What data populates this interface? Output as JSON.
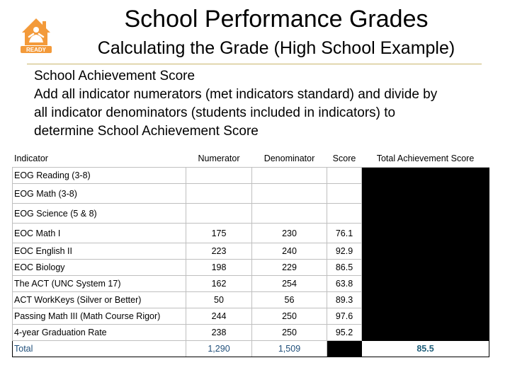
{
  "header": {
    "title": "School Performance Grades",
    "subtitle": "Calculating the Grade (High School Example)",
    "logo_text": "READY",
    "logo_color": "#f39a3a"
  },
  "description": {
    "heading": "School Achievement Score",
    "lines": [
      "Add all indicator numerators (met indicators standard) and divide by",
      "all indicator denominators (students included in indicators) to",
      "determine School Achievement Score"
    ]
  },
  "table": {
    "headers": {
      "indicator": "Indicator",
      "numerator": "Numerator",
      "denominator": "Denominator",
      "score": "Score",
      "total": "Total Achievement Score"
    },
    "rows": [
      {
        "indicator": "EOG Reading (3-8)",
        "numerator": "",
        "denominator": "",
        "score": ""
      },
      {
        "indicator": "EOG Math (3-8)",
        "numerator": "",
        "denominator": "",
        "score": ""
      },
      {
        "indicator": "EOG Science (5 & 8)",
        "numerator": "",
        "denominator": "",
        "score": ""
      },
      {
        "indicator": "EOC Math I",
        "numerator": "175",
        "denominator": "230",
        "score": "76.1"
      },
      {
        "indicator": "EOC English II",
        "numerator": "223",
        "denominator": "240",
        "score": "92.9"
      },
      {
        "indicator": "EOC Biology",
        "numerator": "198",
        "denominator": "229",
        "score": "86.5"
      },
      {
        "indicator": "The ACT (UNC System 17)",
        "numerator": "162",
        "denominator": "254",
        "score": "63.8"
      },
      {
        "indicator": "ACT WorkKeys (Silver or Better)",
        "numerator": "50",
        "denominator": "56",
        "score": "89.3"
      },
      {
        "indicator": "Passing Math III (Math Course Rigor)",
        "numerator": "244",
        "denominator": "250",
        "score": "97.6"
      },
      {
        "indicator": "4-year Graduation Rate",
        "numerator": "238",
        "denominator": "250",
        "score": "95.2"
      }
    ],
    "total": {
      "label": "Total",
      "numerator": "1,290",
      "denominator": "1,509",
      "achievement_score": "85.5"
    }
  }
}
